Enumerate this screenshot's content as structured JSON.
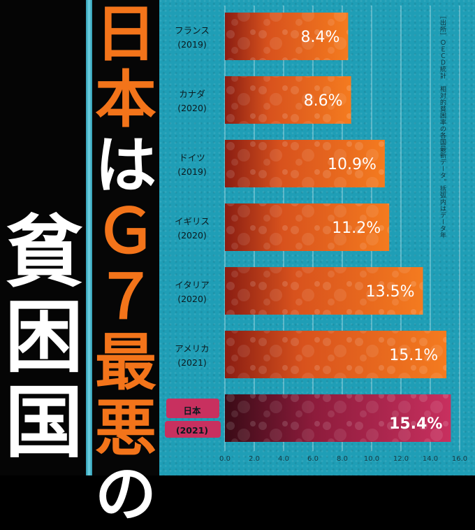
{
  "poster": {
    "headline_chars": [
      "日",
      "本",
      "は",
      "Ｇ",
      "７",
      "最",
      "悪",
      "の"
    ],
    "headline_colors": [
      "orange",
      "orange",
      "white",
      "orange",
      "orange",
      "orange",
      "orange",
      "white"
    ],
    "side_title_chars": [
      "貧",
      "困",
      "国"
    ],
    "source_note": "［出所］ＯＥＣＤ統計　相対的貧困率の各国最新データ。括弧内はデータ年"
  },
  "colors": {
    "background_teal": "#1f9eb6",
    "bar_orange": "#f47b1f",
    "bar_highlight": "#c8305f",
    "headline_orange": "#f3741a"
  },
  "chart_data": {
    "type": "bar",
    "orientation": "horizontal",
    "categories": [
      {
        "name": "フランス",
        "year": "(2019)"
      },
      {
        "name": "カナダ",
        "year": "(2020)"
      },
      {
        "name": "ドイツ",
        "year": "(2019)"
      },
      {
        "name": "イギリス",
        "year": "(2020)"
      },
      {
        "name": "イタリア",
        "year": "(2020)"
      },
      {
        "name": "アメリカ",
        "year": "(2021)"
      },
      {
        "name": "日本",
        "year": "(2021)"
      }
    ],
    "values": [
      8.4,
      8.6,
      10.9,
      11.2,
      13.5,
      15.1,
      15.4
    ],
    "value_labels": [
      "8.4%",
      "8.6%",
      "10.9%",
      "11.2%",
      "13.5%",
      "15.1%",
      "15.4%"
    ],
    "highlight_index": 6,
    "xlim": [
      0,
      16
    ],
    "xticks": [
      "0.0",
      "2.0",
      "4.0",
      "6.0",
      "8.0",
      "10.0",
      "12.0",
      "14.0",
      "16.0"
    ],
    "grid": true
  }
}
